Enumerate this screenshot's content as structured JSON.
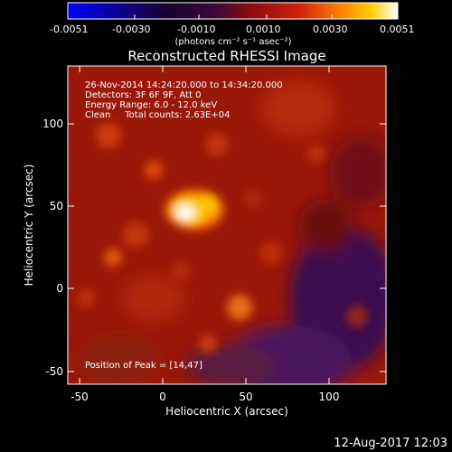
{
  "title": "Reconstructed RHESSI Image",
  "colorbar": {
    "unit_label": "(photons cm⁻² s⁻¹ asec⁻²)",
    "ticks": [
      "-0.0051",
      "-0.0030",
      "-0.0010",
      "0.0010",
      "0.0030",
      "0.0051"
    ],
    "min": -0.0051,
    "max": 0.0051,
    "colormap": [
      "#0000ff",
      "#000000",
      "#6a0a0a",
      "#b01818",
      "#e03a10",
      "#ff8a00",
      "#ffd800",
      "#ffffff"
    ]
  },
  "annotations": {
    "time_range": "26-Nov-2014 14:24:20.000 to 14:34:20.000",
    "detectors": "Detectors: 3F 6F 9F, Att 0",
    "energy": "Energy Range: 6.0 - 12.0 keV",
    "clean": "Clean     Total counts: 2.63E+04",
    "peak": "Position of Peak = [14,47]"
  },
  "axes": {
    "xlabel": "Heliocentric X (arcsec)",
    "ylabel": "Heliocentric Y (arcsec)",
    "xticks": [
      "-50",
      "0",
      "50",
      "100"
    ],
    "yticks": [
      "-50",
      "0",
      "50",
      "100"
    ],
    "xlim": [
      -57,
      135
    ],
    "ylim": [
      -55,
      137
    ]
  },
  "peak_position_arcsec": [
    14,
    47
  ],
  "footer_timestamp": "12-Aug-2017 12:03"
}
